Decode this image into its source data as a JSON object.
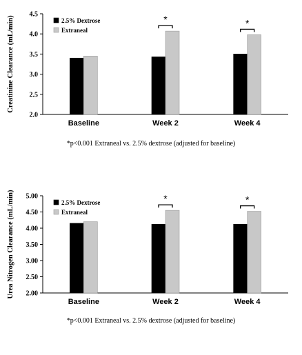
{
  "chart_data": [
    {
      "type": "bar",
      "ylabel": "Creatinine Clearance (mL/min)",
      "categories": [
        "Baseline",
        "Week 2",
        "Week 4"
      ],
      "ylim": [
        2.0,
        4.5
      ],
      "yticks": [
        "2.0",
        "2.5",
        "3.0",
        "3.5",
        "4.0",
        "4.5"
      ],
      "series": [
        {
          "name": "2.5% Dextrose",
          "color": "#000000",
          "values": [
            3.4,
            3.43,
            3.5
          ]
        },
        {
          "name": "Extraneal",
          "color": "#c8c8c8",
          "values": [
            3.45,
            4.07,
            3.98
          ]
        }
      ],
      "significance_marker": "*",
      "significant_categories": [
        1,
        2
      ],
      "legend": "top-left",
      "footnote": "*p<0.001 Extraneal vs. 2.5% dextrose (adjusted for baseline)"
    },
    {
      "type": "bar",
      "ylabel": "Urea Nitrogen Clearance (mL/min)",
      "categories": [
        "Baseline",
        "Week 2",
        "Week 4"
      ],
      "ylim": [
        2.0,
        5.0
      ],
      "yticks": [
        "2.00",
        "2.50",
        "3.00",
        "3.50",
        "4.00",
        "4.50",
        "5.00"
      ],
      "series": [
        {
          "name": "2.5% Dextrose",
          "color": "#000000",
          "values": [
            4.15,
            4.12,
            4.12
          ]
        },
        {
          "name": "Extraneal",
          "color": "#c8c8c8",
          "values": [
            4.2,
            4.55,
            4.52
          ]
        }
      ],
      "significance_marker": "*",
      "significant_categories": [
        1,
        2
      ],
      "legend": "top-left",
      "footnote": "*p<0.001 Extraneal vs. 2.5% dextrose (adjusted for baseline)"
    }
  ]
}
